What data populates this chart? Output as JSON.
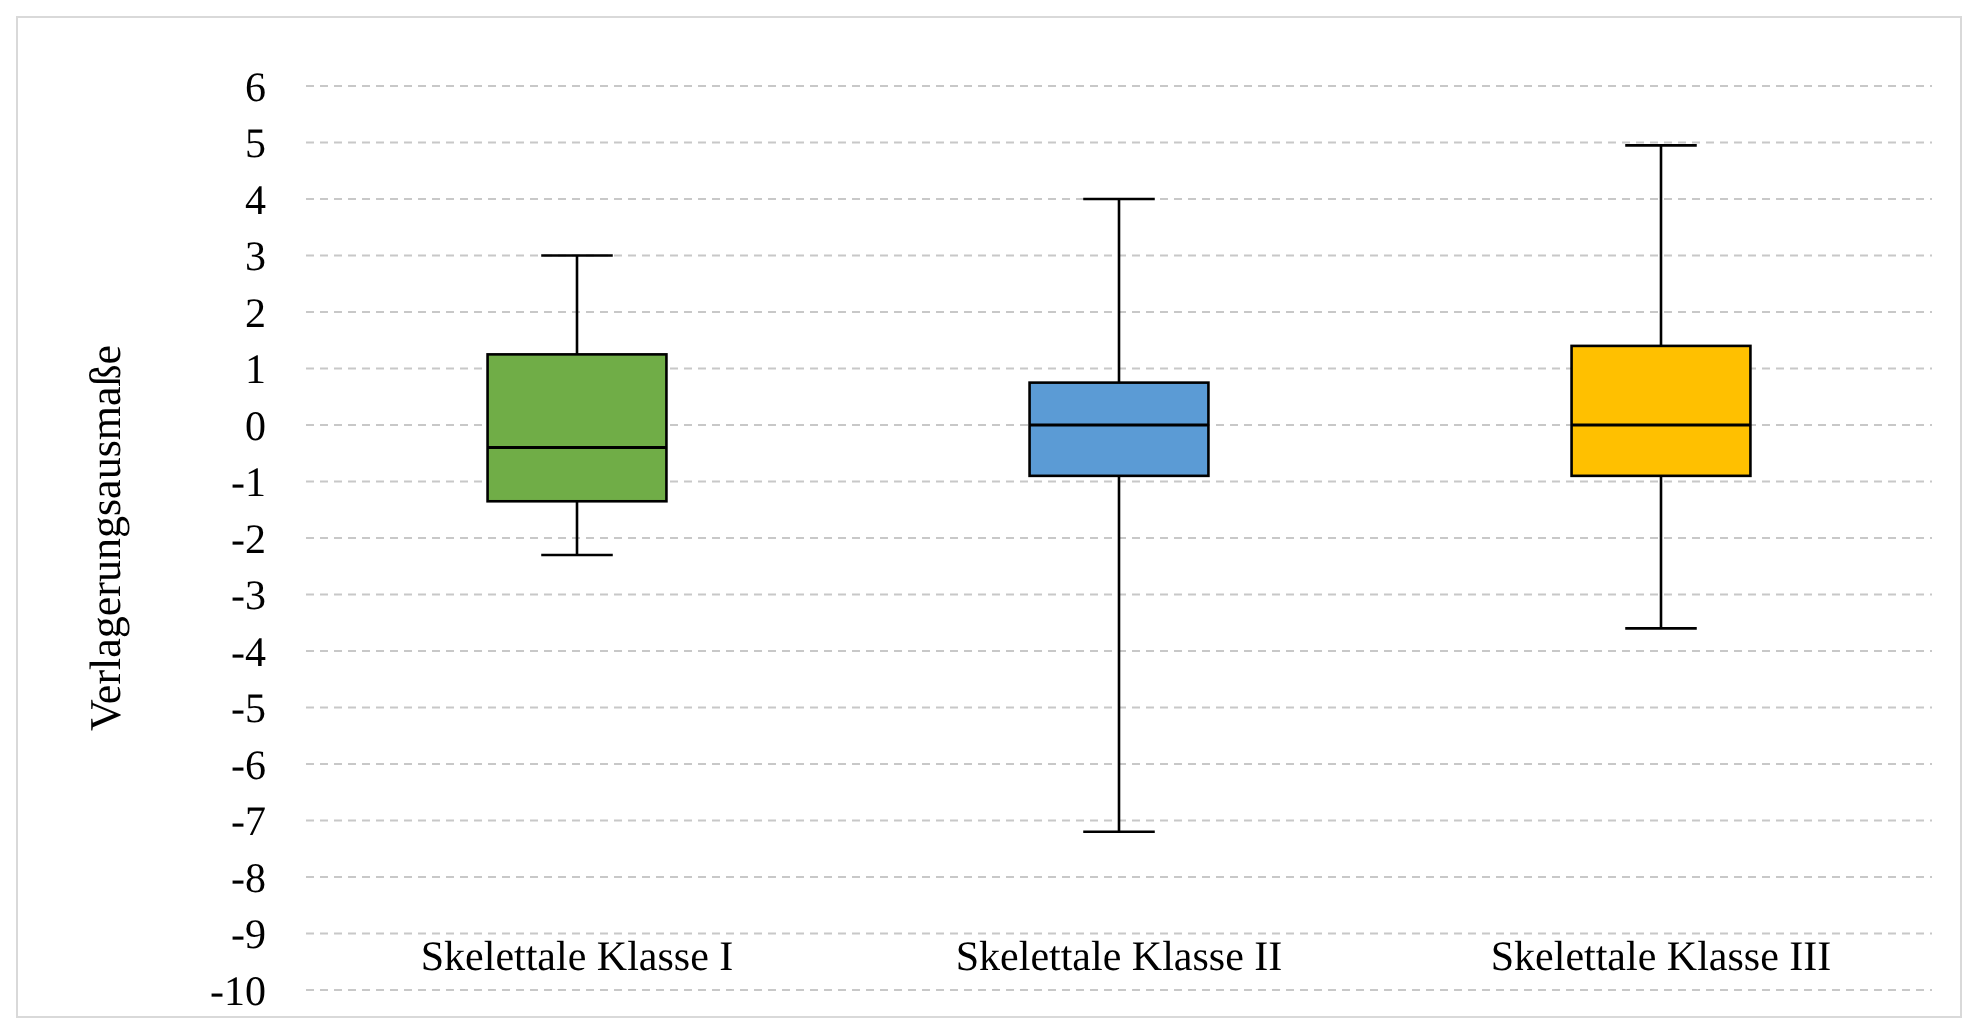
{
  "chart_data": {
    "type": "box",
    "ylabel": "Verlagerungsausmaße",
    "categories": [
      "Skelettale Klasse I",
      "Skelettale Klasse II",
      "Skelettale Klasse III"
    ],
    "colors": [
      "#70ad47",
      "#5b9bd5",
      "#ffc000"
    ],
    "boxes": [
      {
        "low": -2.3,
        "q1": -1.35,
        "median": -0.4,
        "q3": 1.25,
        "high": 3
      },
      {
        "low": -7.2,
        "q1": -0.9,
        "median": 0,
        "q3": 0.75,
        "high": 4
      },
      {
        "low": -3.6,
        "q1": -0.9,
        "median": 0,
        "q3": 1.4,
        "high": 4.95
      }
    ],
    "ylim": [
      -10,
      6
    ],
    "yticks": [
      -10,
      -9,
      -8,
      -7,
      -6,
      -5,
      -4,
      -3,
      -2,
      -1,
      0,
      1,
      2,
      3,
      4,
      5,
      6
    ],
    "grid": "y"
  }
}
